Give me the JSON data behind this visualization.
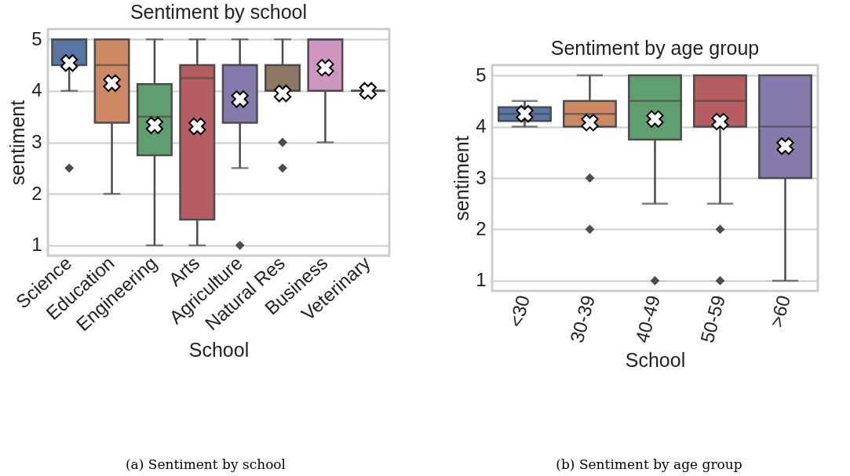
{
  "chart_data": [
    {
      "type": "box",
      "title": "Sentiment by school",
      "xlabel": "School",
      "ylabel": "sentiment",
      "categories": [
        "Science",
        "Education",
        "Engineering",
        "Arts",
        "Agriculture",
        "Natural Res",
        "Business",
        "Veterinary"
      ],
      "colors": [
        "#5975a4",
        "#cc8963",
        "#5f9e6e",
        "#b55d60",
        "#857aab",
        "#8d7866",
        "#d095bf",
        "#8c8c8c"
      ],
      "boxes": [
        {
          "low": 4,
          "q1": 4.5,
          "median": 5,
          "q3": 5,
          "high": 5,
          "mean": 4.54,
          "outliers": [
            2.5
          ]
        },
        {
          "low": 2,
          "q1": 3.38,
          "median": 4.5,
          "q3": 5,
          "high": 5,
          "mean": 4.15
        },
        {
          "low": 1,
          "q1": 2.75,
          "median": 3.5,
          "q3": 4.13,
          "high": 5,
          "mean": 3.33
        },
        {
          "low": 1,
          "q1": 1.5,
          "median": 4.25,
          "q3": 4.5,
          "high": 5,
          "mean": 3.31
        },
        {
          "low": 2.5,
          "q1": 3.38,
          "median": 4.5,
          "q3": 4.5,
          "high": 5,
          "mean": 3.84,
          "outliers": [
            1
          ]
        },
        {
          "low": 4,
          "q1": 4,
          "median": 4,
          "q3": 4.5,
          "high": 5,
          "mean": 3.95,
          "outliers": [
            3,
            2.5
          ]
        },
        {
          "low": 3,
          "q1": 4,
          "median": 5,
          "q3": 5,
          "high": 5,
          "mean": 4.45
        },
        {
          "low": 4,
          "q1": 4,
          "median": 4,
          "q3": 4,
          "high": 4,
          "mean": 4
        }
      ],
      "ylim": [
        0.8,
        5.2
      ],
      "yticks": [
        1,
        2,
        3,
        4,
        5
      ],
      "grid": "y",
      "annotations": [
        "(a) Sentiment by school"
      ]
    },
    {
      "type": "box",
      "title": "Sentiment by age group",
      "xlabel": "School",
      "ylabel": "sentiment",
      "categories": [
        "<30",
        "30-39",
        "40-49",
        "50-59",
        ">60"
      ],
      "colors": [
        "#5975a4",
        "#cc8963",
        "#5f9e6e",
        "#b55d60",
        "#857aab"
      ],
      "boxes": [
        {
          "low": 4,
          "q1": 4.11,
          "median": 4.25,
          "q3": 4.38,
          "high": 4.5,
          "mean": 4.25
        },
        {
          "low": 4,
          "q1": 4,
          "median": 4.25,
          "q3": 4.5,
          "high": 5,
          "mean": 4.08,
          "outliers": [
            3,
            2
          ]
        },
        {
          "low": 2.5,
          "q1": 3.75,
          "median": 4.5,
          "q3": 5,
          "high": 5,
          "mean": 4.15,
          "outliers": [
            1
          ]
        },
        {
          "low": 2.5,
          "q1": 4,
          "median": 4.5,
          "q3": 5,
          "high": 5,
          "mean": 4.1,
          "outliers": [
            2,
            1
          ]
        },
        {
          "low": 1,
          "q1": 3,
          "median": 4,
          "q3": 5,
          "high": 5,
          "mean": 3.62
        }
      ],
      "ylim": [
        0.8,
        5.2
      ],
      "yticks": [
        1,
        2,
        3,
        4,
        5
      ],
      "grid": "y",
      "annotations": [
        "(b) Sentiment by age group"
      ]
    }
  ]
}
